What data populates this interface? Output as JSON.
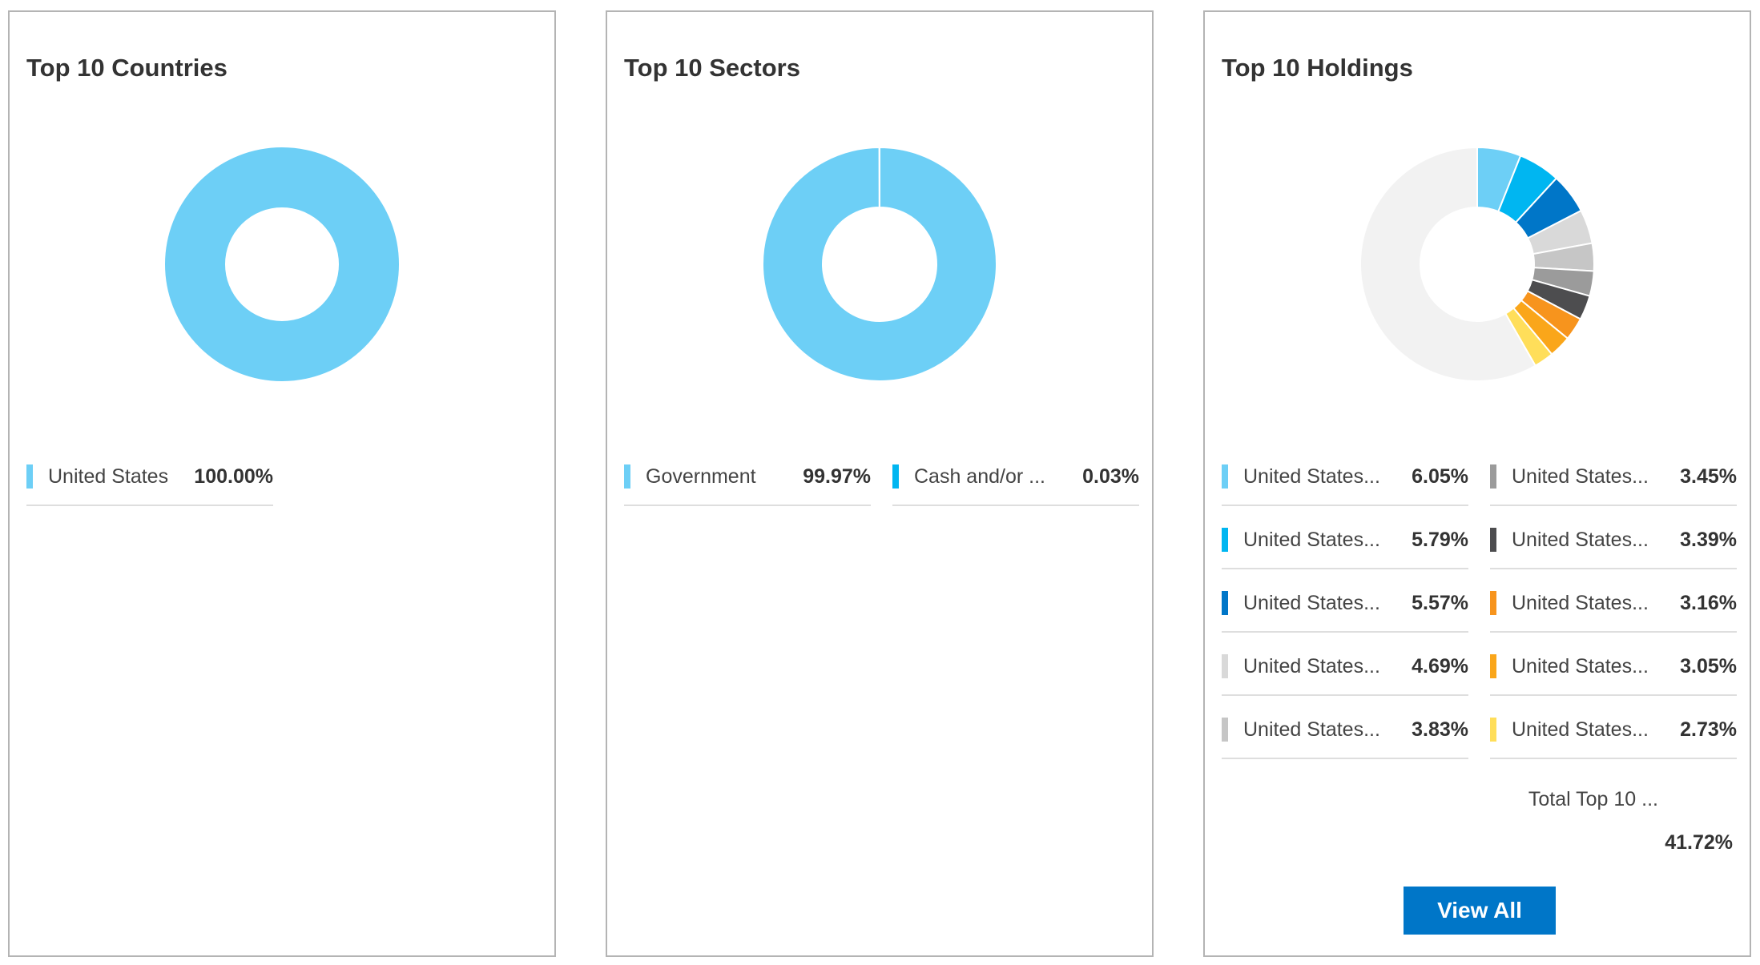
{
  "chart_data": [
    {
      "type": "pie",
      "title": "Top 10 Countries",
      "slices": [
        {
          "label": "United States",
          "value_text": "100.00%",
          "value": 100.0,
          "color": "#6dcff6"
        }
      ]
    },
    {
      "type": "pie",
      "title": "Top 10 Sectors",
      "slices": [
        {
          "label": "Government",
          "value_text": "99.97%",
          "value": 99.97,
          "color": "#6dcff6"
        },
        {
          "label": "Cash and/or ...",
          "value_text": "0.03%",
          "value": 0.03,
          "color": "#00b6f1"
        }
      ]
    },
    {
      "type": "pie",
      "title": "Top 10 Holdings",
      "slices": [
        {
          "label": "United States...",
          "value_text": "6.05%",
          "value": 6.05,
          "color": "#6dcff6"
        },
        {
          "label": "United States...",
          "value_text": "5.79%",
          "value": 5.79,
          "color": "#00b6f1"
        },
        {
          "label": "United States...",
          "value_text": "5.57%",
          "value": 5.57,
          "color": "#0076c8"
        },
        {
          "label": "United States...",
          "value_text": "4.69%",
          "value": 4.69,
          "color": "#d9d9d9"
        },
        {
          "label": "United States...",
          "value_text": "3.83%",
          "value": 3.83,
          "color": "#c6c6c6"
        },
        {
          "label": "United States...",
          "value_text": "3.45%",
          "value": 3.45,
          "color": "#9b9b9b"
        },
        {
          "label": "United States...",
          "value_text": "3.39%",
          "value": 3.39,
          "color": "#4d4d4f"
        },
        {
          "label": "United States...",
          "value_text": "3.16%",
          "value": 3.16,
          "color": "#f7941d"
        },
        {
          "label": "United States...",
          "value_text": "3.05%",
          "value": 3.05,
          "color": "#faa61a"
        },
        {
          "label": "United States...",
          "value_text": "2.73%",
          "value": 2.73,
          "color": "#ffde5a"
        }
      ],
      "remainder": {
        "value": 58.28,
        "color": "#f2f2f2"
      },
      "total_label": "Total Top 10 ...",
      "total_value": "41.72%"
    }
  ],
  "buttons": {
    "view_all": "View All"
  }
}
